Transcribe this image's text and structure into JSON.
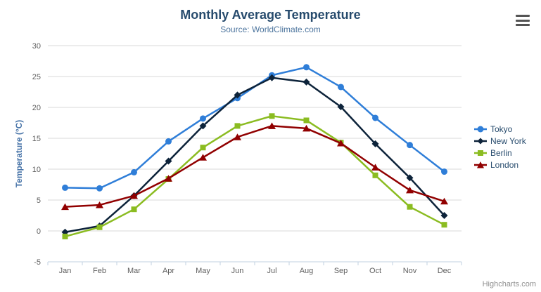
{
  "header": {
    "title": "Monthly Average Temperature",
    "subtitle": "Source: WorldClimate.com"
  },
  "credits_label": "Highcharts.com",
  "context_menu": {
    "icon": "hamburger-icon"
  },
  "colors": {
    "title": "#274b6d",
    "subtitle": "#4d759e",
    "axis_labels": "#606060",
    "yaxis_title": "#4572a7",
    "gridline": "#d8d8d8",
    "axis_line": "#c0d0e0",
    "legend_text": "#274b6d",
    "credits": "#909090"
  },
  "chart_data": {
    "type": "line",
    "title": "Monthly Average Temperature",
    "subtitle": "Source: WorldClimate.com",
    "xlabel": "",
    "ylabel": "Temperature (°C)",
    "categories": [
      "Jan",
      "Feb",
      "Mar",
      "Apr",
      "May",
      "Jun",
      "Jul",
      "Aug",
      "Sep",
      "Oct",
      "Nov",
      "Dec"
    ],
    "ylim": [
      -5,
      30
    ],
    "ytick_step": 5,
    "yticks": [
      30,
      25,
      20,
      15,
      10,
      5,
      0,
      -5
    ],
    "grid": true,
    "legend_position": "right",
    "series": [
      {
        "name": "Tokyo",
        "color": "#2f7ed8",
        "marker": "circle",
        "values": [
          7.0,
          6.9,
          9.5,
          14.5,
          18.2,
          21.5,
          25.2,
          26.5,
          23.3,
          18.3,
          13.9,
          9.6
        ]
      },
      {
        "name": "New York",
        "color": "#0d233a",
        "marker": "diamond",
        "values": [
          -0.2,
          0.8,
          5.7,
          11.3,
          17.0,
          22.0,
          24.8,
          24.1,
          20.1,
          14.1,
          8.6,
          2.5
        ]
      },
      {
        "name": "Berlin",
        "color": "#8bbc21",
        "marker": "square",
        "values": [
          -0.9,
          0.6,
          3.5,
          8.4,
          13.5,
          17.0,
          18.6,
          17.9,
          14.3,
          9.0,
          3.9,
          1.0
        ]
      },
      {
        "name": "London",
        "color": "#910000",
        "marker": "triangle",
        "values": [
          3.9,
          4.2,
          5.7,
          8.5,
          11.9,
          15.2,
          17.0,
          16.6,
          14.2,
          10.3,
          6.6,
          4.8
        ]
      }
    ]
  }
}
